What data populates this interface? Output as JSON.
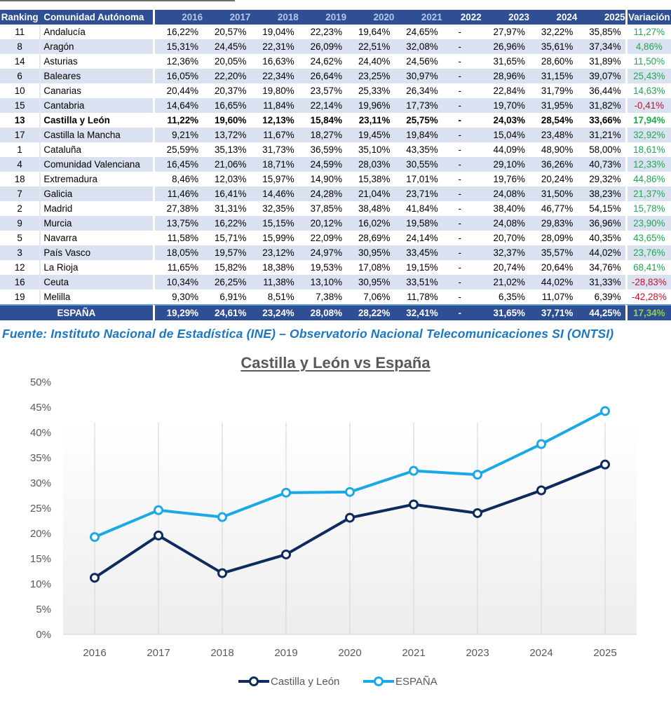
{
  "table": {
    "headers": {
      "ranking": "Ranking",
      "comunidad": "Comunidad Autónoma",
      "years": [
        "2016",
        "2017",
        "2018",
        "2019",
        "2020",
        "2021",
        "2022",
        "2023",
        "2024",
        "2025"
      ],
      "variacion": "Variación"
    },
    "rows": [
      {
        "rank": "11",
        "name": "Andalucía",
        "values": [
          "16,22%",
          "20,57%",
          "19,04%",
          "22,23%",
          "19,64%",
          "24,65%",
          "-",
          "27,97%",
          "32,22%",
          "35,85%"
        ],
        "variacion": "11,27%",
        "trend": "pos"
      },
      {
        "rank": "8",
        "name": "Aragón",
        "values": [
          "15,31%",
          "24,45%",
          "22,31%",
          "26,09%",
          "22,51%",
          "32,08%",
          "-",
          "26,96%",
          "35,61%",
          "37,34%"
        ],
        "variacion": "4,86%",
        "trend": "pos"
      },
      {
        "rank": "14",
        "name": "Asturias",
        "values": [
          "12,36%",
          "20,05%",
          "16,63%",
          "24,62%",
          "24,40%",
          "24,56%",
          "-",
          "31,65%",
          "28,60%",
          "31,89%"
        ],
        "variacion": "11,50%",
        "trend": "pos"
      },
      {
        "rank": "6",
        "name": "Baleares",
        "values": [
          "16,05%",
          "22,20%",
          "22,34%",
          "26,64%",
          "23,25%",
          "30,97%",
          "-",
          "28,96%",
          "31,15%",
          "39,07%"
        ],
        "variacion": "25,43%",
        "trend": "pos"
      },
      {
        "rank": "10",
        "name": "Canarias",
        "values": [
          "20,44%",
          "20,37%",
          "19,80%",
          "23,57%",
          "25,33%",
          "26,34%",
          "-",
          "22,84%",
          "31,79%",
          "36,44%"
        ],
        "variacion": "14,63%",
        "trend": "pos"
      },
      {
        "rank": "15",
        "name": "Cantabria",
        "values": [
          "14,64%",
          "16,65%",
          "11,84%",
          "22,14%",
          "19,96%",
          "17,73%",
          "-",
          "19,70%",
          "31,95%",
          "31,82%"
        ],
        "variacion": "-0,41%",
        "trend": "neg"
      },
      {
        "rank": "13",
        "name": "Castilla y León",
        "values": [
          "11,22%",
          "19,60%",
          "12,13%",
          "15,84%",
          "23,11%",
          "25,75%",
          "-",
          "24,03%",
          "28,54%",
          "33,66%"
        ],
        "variacion": "17,94%",
        "trend": "pos",
        "highlight": true
      },
      {
        "rank": "17",
        "name": "Castilla la Mancha",
        "values": [
          "9,21%",
          "13,72%",
          "11,67%",
          "18,27%",
          "19,45%",
          "19,84%",
          "-",
          "15,04%",
          "23,48%",
          "31,21%"
        ],
        "variacion": "32,92%",
        "trend": "pos"
      },
      {
        "rank": "1",
        "name": "Cataluña",
        "values": [
          "25,59%",
          "35,13%",
          "31,73%",
          "36,59%",
          "35,10%",
          "43,35%",
          "-",
          "44,09%",
          "48,90%",
          "58,00%"
        ],
        "variacion": "18,61%",
        "trend": "pos"
      },
      {
        "rank": "4",
        "name": "Comunidad Valenciana",
        "values": [
          "16,45%",
          "21,06%",
          "18,71%",
          "24,59%",
          "28,03%",
          "30,55%",
          "-",
          "29,10%",
          "36,26%",
          "40,73%"
        ],
        "variacion": "12,33%",
        "trend": "pos"
      },
      {
        "rank": "18",
        "name": "Extremadura",
        "values": [
          "8,46%",
          "12,03%",
          "15,97%",
          "14,90%",
          "15,38%",
          "17,01%",
          "-",
          "19,76%",
          "20,24%",
          "29,32%"
        ],
        "variacion": "44,86%",
        "trend": "pos"
      },
      {
        "rank": "7",
        "name": "Galicia",
        "values": [
          "11,46%",
          "16,41%",
          "14,46%",
          "24,28%",
          "21,04%",
          "23,71%",
          "-",
          "24,08%",
          "31,50%",
          "38,23%"
        ],
        "variacion": "21,37%",
        "trend": "pos"
      },
      {
        "rank": "2",
        "name": "Madrid",
        "values": [
          "27,38%",
          "31,31%",
          "32,35%",
          "37,85%",
          "38,48%",
          "41,84%",
          "-",
          "38,40%",
          "46,77%",
          "54,15%"
        ],
        "variacion": "15,78%",
        "trend": "pos"
      },
      {
        "rank": "9",
        "name": "Murcia",
        "values": [
          "13,75%",
          "16,22%",
          "15,15%",
          "20,12%",
          "16,02%",
          "19,58%",
          "-",
          "24,08%",
          "29,83%",
          "36,96%"
        ],
        "variacion": "23,90%",
        "trend": "pos"
      },
      {
        "rank": "5",
        "name": "Navarra",
        "values": [
          "11,58%",
          "15,71%",
          "15,99%",
          "22,09%",
          "28,69%",
          "24,14%",
          "-",
          "20,70%",
          "28,09%",
          "40,35%"
        ],
        "variacion": "43,65%",
        "trend": "pos"
      },
      {
        "rank": "3",
        "name": "País Vasco",
        "values": [
          "18,05%",
          "19,57%",
          "23,12%",
          "24,97%",
          "30,95%",
          "33,45%",
          "-",
          "32,37%",
          "35,57%",
          "44,02%"
        ],
        "variacion": "23,76%",
        "trend": "pos"
      },
      {
        "rank": "12",
        "name": "La Rioja",
        "values": [
          "11,65%",
          "15,82%",
          "18,38%",
          "19,53%",
          "17,08%",
          "19,15%",
          "-",
          "20,74%",
          "20,64%",
          "34,76%"
        ],
        "variacion": "68,41%",
        "trend": "pos"
      },
      {
        "rank": "16",
        "name": "Ceuta",
        "values": [
          "10,34%",
          "26,25%",
          "11,38%",
          "13,10%",
          "30,95%",
          "33,51%",
          "-",
          "21,02%",
          "44,02%",
          "31,33%"
        ],
        "variacion": "-28,83%",
        "trend": "neg"
      },
      {
        "rank": "19",
        "name": "Melilla",
        "values": [
          "9,30%",
          "6,91%",
          "8,51%",
          "7,38%",
          "7,06%",
          "11,78%",
          "-",
          "6,35%",
          "11,07%",
          "6,39%"
        ],
        "variacion": "-42,28%",
        "trend": "neg"
      }
    ],
    "total": {
      "name": "ESPAÑA",
      "values": [
        "19,29%",
        "24,61%",
        "23,24%",
        "28,08%",
        "28,22%",
        "32,41%",
        "-",
        "31,65%",
        "37,71%",
        "44,25%"
      ],
      "variacion": "17,34%"
    }
  },
  "source": "Fuente: Instituto Nacional de Estadística (INE) – Observatorio Nacional Telecomunicaciones SI (ONTSI)",
  "colors": {
    "header_bg": "#2f4f94",
    "alt_row": "#dae1f1",
    "positive": "#22a84f",
    "negative": "#c8102e",
    "source_text": "#1a78c2",
    "series_cyl": "#0e2a5e",
    "series_es": "#1aa9e6"
  },
  "chart_data": {
    "type": "line",
    "title": "Castilla y León vs España",
    "xlabel": "",
    "ylabel": "",
    "categories": [
      "2016",
      "2017",
      "2018",
      "2019",
      "2020",
      "2021",
      "2023",
      "2024",
      "2025"
    ],
    "series": [
      {
        "name": "Castilla y León",
        "values": [
          11.22,
          19.6,
          12.13,
          15.84,
          23.11,
          25.75,
          24.03,
          28.54,
          33.66
        ]
      },
      {
        "name": "ESPAÑA",
        "values": [
          19.29,
          24.61,
          23.24,
          28.08,
          28.22,
          32.41,
          31.65,
          37.71,
          44.25
        ]
      }
    ],
    "ylim": [
      0,
      50
    ],
    "yticks": [
      "0%",
      "5%",
      "10%",
      "15%",
      "20%",
      "25%",
      "30%",
      "35%",
      "40%",
      "45%",
      "50%"
    ],
    "grid": "vertical",
    "legend": "bottom"
  }
}
